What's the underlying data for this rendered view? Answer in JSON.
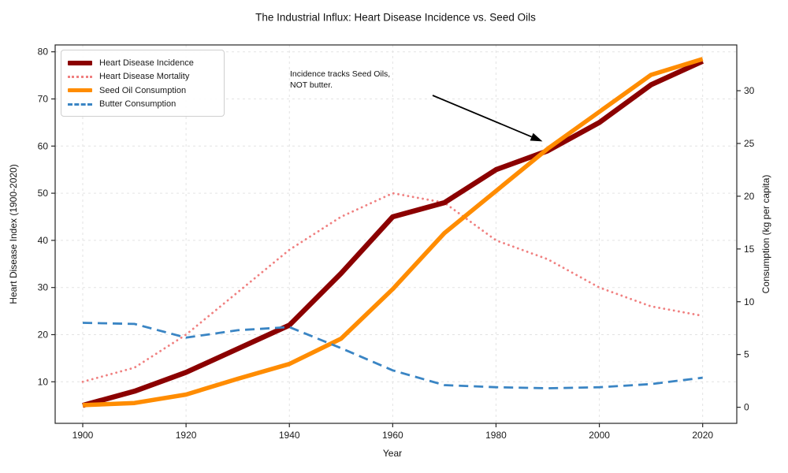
{
  "title": "The Industrial Influx: Heart Disease Incidence vs. Seed Oils",
  "annotation": {
    "line1": "Incidence tracks Seed Oils,",
    "line2": "NOT butter."
  },
  "axes": {
    "x_label": "Year",
    "y_left_label": "Heart Disease Index (1900-2020)",
    "y_right_label": "Consumption (kg per capita)",
    "x_ticks": [
      "1900",
      "1920",
      "1940",
      "1960",
      "1980",
      "2000",
      "2020"
    ],
    "y_left_ticks": [
      "10",
      "20",
      "30",
      "40",
      "50",
      "60",
      "70",
      "80"
    ],
    "y_right_ticks": [
      "0",
      "5",
      "10",
      "15",
      "20",
      "25",
      "30"
    ]
  },
  "colors": {
    "incidence": "#8B0000",
    "mortality": "#F08080",
    "seed_oil": "#FF8C00",
    "butter": "#3A85C4",
    "grid": "#e3e3e3",
    "spine": "#262626"
  },
  "chart_data": {
    "type": "line",
    "title": "The Industrial Influx: Heart Disease Incidence vs. Seed Oils",
    "xlabel": "Year",
    "ylabel_left": "Heart Disease Index (1900-2020)",
    "ylabel_right": "Consumption (kg per capita)",
    "x": [
      1900,
      1910,
      1920,
      1930,
      1940,
      1950,
      1960,
      1970,
      1980,
      1990,
      2000,
      2010,
      2020
    ],
    "xlim": [
      1895,
      2026
    ],
    "ylim_left": [
      1,
      82
    ],
    "ylim_right": [
      -0.2,
      34.5
    ],
    "grid": true,
    "legend_position": "upper left",
    "series": [
      {
        "name": "Heart Disease Incidence",
        "axis": "left",
        "color": "#8B0000",
        "line_style": "solid",
        "line_width": 6.5,
        "swatch": "bar-thick",
        "values": [
          5,
          8,
          12,
          17,
          22,
          33,
          45,
          48,
          55,
          59,
          65,
          73,
          78
        ]
      },
      {
        "name": "Heart Disease Mortality",
        "axis": "left",
        "color": "#F08080",
        "line_style": "dotted",
        "line_width": 2.8,
        "swatch": "line-dotted",
        "values": [
          10,
          13,
          20,
          29,
          38,
          45,
          50,
          48,
          40,
          36,
          30,
          26,
          24
        ]
      },
      {
        "name": "Seed Oil Consumption",
        "axis": "right",
        "color": "#FF8C00",
        "line_style": "solid",
        "line_width": 5.5,
        "swatch": "bar-mid",
        "values": [
          0.2,
          0.4,
          1.2,
          2.7,
          4.1,
          6.5,
          11.2,
          16.5,
          20.5,
          24.5,
          28,
          31.5,
          33
        ]
      },
      {
        "name": "Butter Consumption",
        "axis": "right",
        "color": "#3A85C4",
        "line_style": "dashed",
        "line_width": 2.8,
        "swatch": "line-dashed",
        "values": [
          8,
          7.9,
          6.6,
          7.3,
          7.6,
          5.6,
          3.5,
          2.1,
          1.9,
          1.8,
          1.9,
          2.2,
          2.8
        ]
      }
    ],
    "annotation": {
      "text": "Incidence tracks Seed Oils,\nNOT butter.",
      "arrow_target": {
        "year": 1989,
        "left_axis_value": 61
      }
    }
  }
}
